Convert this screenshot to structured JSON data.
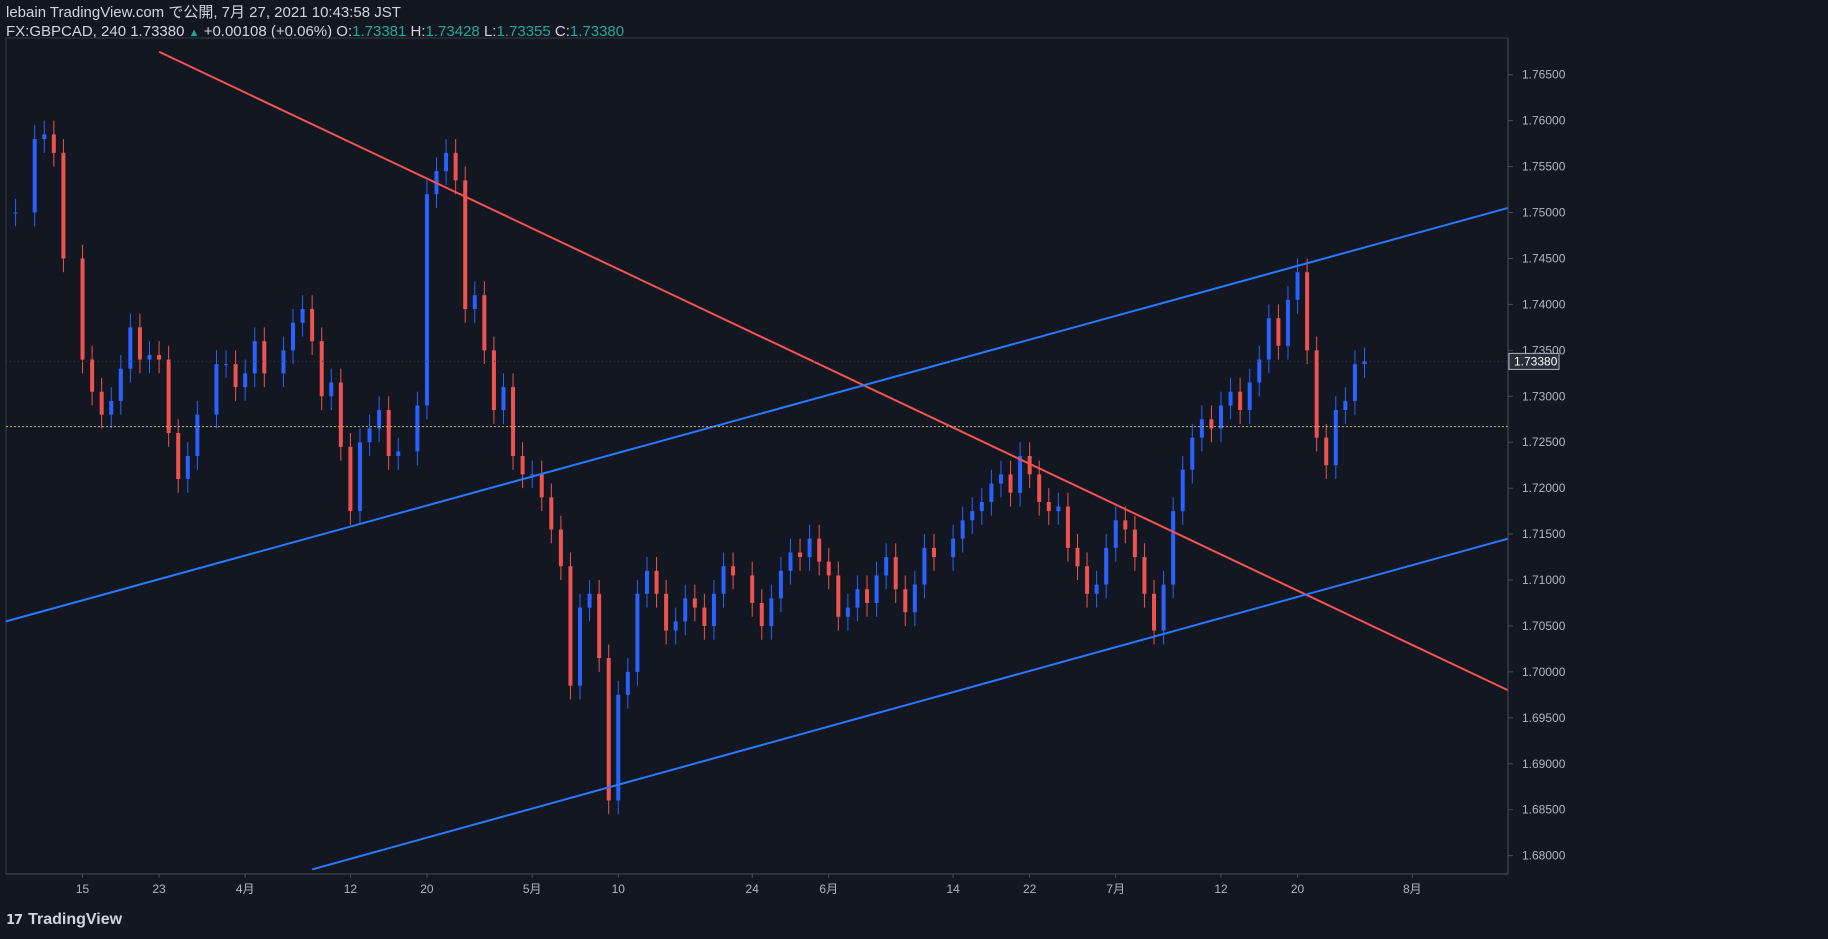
{
  "header": {
    "publisher": "lebain TradingView.com で公開, 7月 27, 2021 10:43:58 JST",
    "symbol": "FX:GBPCAD, 240",
    "last": "1.73380",
    "change": "+0.00108 (+0.06%)",
    "o_label": "O:",
    "o_value": "1.73381",
    "h_label": "H:",
    "h_value": "1.73428",
    "l_label": "L:",
    "l_value": "1.73355",
    "c_label": "C:",
    "c_value": "1.73380"
  },
  "footer": {
    "logo_icon": "tradingview-logo-icon",
    "brand": "TradingView"
  },
  "colors": {
    "background": "#131722",
    "up": "#2962ff",
    "down": "#ef5350",
    "trend_down": "#f05350",
    "channel": "#2979ff",
    "grid": "#2a2e39",
    "last_price_line": "#c8b84a"
  },
  "chart_data": {
    "type": "candlestick",
    "symbol": "FX:GBPCAD",
    "timeframe": "240",
    "ylim": [
      1.678,
      1.769
    ],
    "y_ticks": [
      1.765,
      1.76,
      1.755,
      1.75,
      1.745,
      1.74,
      1.735,
      1.73,
      1.725,
      1.72,
      1.715,
      1.71,
      1.705,
      1.7,
      1.695,
      1.69,
      1.685,
      1.68
    ],
    "y_tick_labels": [
      "1.76500",
      "1.76000",
      "1.75500",
      "1.75000",
      "1.74500",
      "1.74000",
      "1.73500",
      "1.73000",
      "1.72500",
      "1.72000",
      "1.71500",
      "1.71000",
      "1.70500",
      "1.70000",
      "1.69500",
      "1.69000",
      "1.68500",
      "1.68000"
    ],
    "x_ticks": [
      "15",
      "23",
      "4月",
      "12",
      "20",
      "5月",
      "10",
      "24",
      "6月",
      "14",
      "22",
      "7月",
      "12",
      "20",
      "8月"
    ],
    "x_tick_dates": [
      "2021-03-15",
      "2021-03-23",
      "2021-04-01",
      "2021-04-12",
      "2021-04-20",
      "2021-05-01",
      "2021-05-10",
      "2021-05-24",
      "2021-06-01",
      "2021-06-14",
      "2021-06-22",
      "2021-07-01",
      "2021-07-12",
      "2021-07-20",
      "2021-08-01"
    ],
    "last_price": 1.7338,
    "last_price_label": "1.73380",
    "reference_level": 1.7267,
    "closes": [
      [
        "2021-03-08",
        1.75
      ],
      [
        "2021-03-10",
        1.758
      ],
      [
        "2021-03-11",
        1.7585
      ],
      [
        "2021-03-12",
        1.7565
      ],
      [
        "2021-03-13",
        1.745
      ],
      [
        "2021-03-15",
        1.734
      ],
      [
        "2021-03-16",
        1.7305
      ],
      [
        "2021-03-17",
        1.728
      ],
      [
        "2021-03-18",
        1.7295
      ],
      [
        "2021-03-19",
        1.733
      ],
      [
        "2021-03-20",
        1.7375
      ],
      [
        "2021-03-21",
        1.734
      ],
      [
        "2021-03-22",
        1.7345
      ],
      [
        "2021-03-23",
        1.734
      ],
      [
        "2021-03-24",
        1.726
      ],
      [
        "2021-03-25",
        1.721
      ],
      [
        "2021-03-26",
        1.7235
      ],
      [
        "2021-03-27",
        1.728
      ],
      [
        "2021-03-29",
        1.7335
      ],
      [
        "2021-03-30",
        1.7335
      ],
      [
        "2021-03-31",
        1.731
      ],
      [
        "2021-04-01",
        1.7325
      ],
      [
        "2021-04-02",
        1.736
      ],
      [
        "2021-04-03",
        1.7325
      ],
      [
        "2021-04-05",
        1.735
      ],
      [
        "2021-04-06",
        1.738
      ],
      [
        "2021-04-07",
        1.7395
      ],
      [
        "2021-04-08",
        1.736
      ],
      [
        "2021-04-09",
        1.73
      ],
      [
        "2021-04-10",
        1.7315
      ],
      [
        "2021-04-11",
        1.7245
      ],
      [
        "2021-04-12",
        1.7175
      ],
      [
        "2021-04-13",
        1.725
      ],
      [
        "2021-04-14",
        1.7265
      ],
      [
        "2021-04-15",
        1.7285
      ],
      [
        "2021-04-16",
        1.7235
      ],
      [
        "2021-04-17",
        1.724
      ],
      [
        "2021-04-19",
        1.729
      ],
      [
        "2021-04-20",
        1.752
      ],
      [
        "2021-04-21",
        1.7545
      ],
      [
        "2021-04-22",
        1.7565
      ],
      [
        "2021-04-23",
        1.7535
      ],
      [
        "2021-04-24",
        1.7395
      ],
      [
        "2021-04-25",
        1.741
      ],
      [
        "2021-04-26",
        1.735
      ],
      [
        "2021-04-27",
        1.7285
      ],
      [
        "2021-04-28",
        1.731
      ],
      [
        "2021-04-29",
        1.7235
      ],
      [
        "2021-04-30",
        1.7215
      ],
      [
        "2021-05-01",
        1.7215
      ],
      [
        "2021-05-02",
        1.719
      ],
      [
        "2021-05-03",
        1.7155
      ],
      [
        "2021-05-04",
        1.7115
      ],
      [
        "2021-05-05",
        1.6985
      ],
      [
        "2021-05-06",
        1.707
      ],
      [
        "2021-05-07",
        1.7085
      ],
      [
        "2021-05-08",
        1.7015
      ],
      [
        "2021-05-09",
        1.686
      ],
      [
        "2021-05-10",
        1.6975
      ],
      [
        "2021-05-11",
        1.7
      ],
      [
        "2021-05-12",
        1.7085
      ],
      [
        "2021-05-13",
        1.711
      ],
      [
        "2021-05-14",
        1.7085
      ],
      [
        "2021-05-15",
        1.7045
      ],
      [
        "2021-05-16",
        1.7055
      ],
      [
        "2021-05-17",
        1.708
      ],
      [
        "2021-05-18",
        1.707
      ],
      [
        "2021-05-19",
        1.705
      ],
      [
        "2021-05-20",
        1.7085
      ],
      [
        "2021-05-21",
        1.7115
      ],
      [
        "2021-05-22",
        1.7105
      ],
      [
        "2021-05-24",
        1.7075
      ],
      [
        "2021-05-25",
        1.705
      ],
      [
        "2021-05-26",
        1.708
      ],
      [
        "2021-05-27",
        1.711
      ],
      [
        "2021-05-28",
        1.713
      ],
      [
        "2021-05-29",
        1.7125
      ],
      [
        "2021-05-30",
        1.7145
      ],
      [
        "2021-05-31",
        1.712
      ],
      [
        "2021-06-01",
        1.7105
      ],
      [
        "2021-06-02",
        1.706
      ],
      [
        "2021-06-03",
        1.707
      ],
      [
        "2021-06-04",
        1.709
      ],
      [
        "2021-06-05",
        1.7075
      ],
      [
        "2021-06-06",
        1.7105
      ],
      [
        "2021-06-07",
        1.7125
      ],
      [
        "2021-06-08",
        1.709
      ],
      [
        "2021-06-09",
        1.7065
      ],
      [
        "2021-06-10",
        1.7095
      ],
      [
        "2021-06-11",
        1.7135
      ],
      [
        "2021-06-12",
        1.7125
      ],
      [
        "2021-06-14",
        1.7145
      ],
      [
        "2021-06-15",
        1.7165
      ],
      [
        "2021-06-16",
        1.7175
      ],
      [
        "2021-06-17",
        1.7185
      ],
      [
        "2021-06-18",
        1.7205
      ],
      [
        "2021-06-19",
        1.7215
      ],
      [
        "2021-06-20",
        1.7195
      ],
      [
        "2021-06-21",
        1.7235
      ],
      [
        "2021-06-22",
        1.7215
      ],
      [
        "2021-06-23",
        1.7185
      ],
      [
        "2021-06-24",
        1.7175
      ],
      [
        "2021-06-25",
        1.718
      ],
      [
        "2021-06-26",
        1.7135
      ],
      [
        "2021-06-27",
        1.7115
      ],
      [
        "2021-06-28",
        1.7085
      ],
      [
        "2021-06-29",
        1.7095
      ],
      [
        "2021-06-30",
        1.7135
      ],
      [
        "2021-07-01",
        1.7165
      ],
      [
        "2021-07-02",
        1.7155
      ],
      [
        "2021-07-03",
        1.7125
      ],
      [
        "2021-07-04",
        1.7085
      ],
      [
        "2021-07-05",
        1.7045
      ],
      [
        "2021-07-06",
        1.7095
      ],
      [
        "2021-07-07",
        1.7175
      ],
      [
        "2021-07-08",
        1.722
      ],
      [
        "2021-07-09",
        1.7255
      ],
      [
        "2021-07-10",
        1.7275
      ],
      [
        "2021-07-11",
        1.7265
      ],
      [
        "2021-07-12",
        1.729
      ],
      [
        "2021-07-13",
        1.7305
      ],
      [
        "2021-07-14",
        1.7285
      ],
      [
        "2021-07-15",
        1.7315
      ],
      [
        "2021-07-16",
        1.734
      ],
      [
        "2021-07-17",
        1.7385
      ],
      [
        "2021-07-18",
        1.7355
      ],
      [
        "2021-07-19",
        1.7405
      ],
      [
        "2021-07-20",
        1.7435
      ],
      [
        "2021-07-21",
        1.735
      ],
      [
        "2021-07-22",
        1.7255
      ],
      [
        "2021-07-23",
        1.7225
      ],
      [
        "2021-07-24",
        1.7285
      ],
      [
        "2021-07-25",
        1.7295
      ],
      [
        "2021-07-26",
        1.7335
      ],
      [
        "2021-07-27",
        1.7338
      ]
    ]
  }
}
